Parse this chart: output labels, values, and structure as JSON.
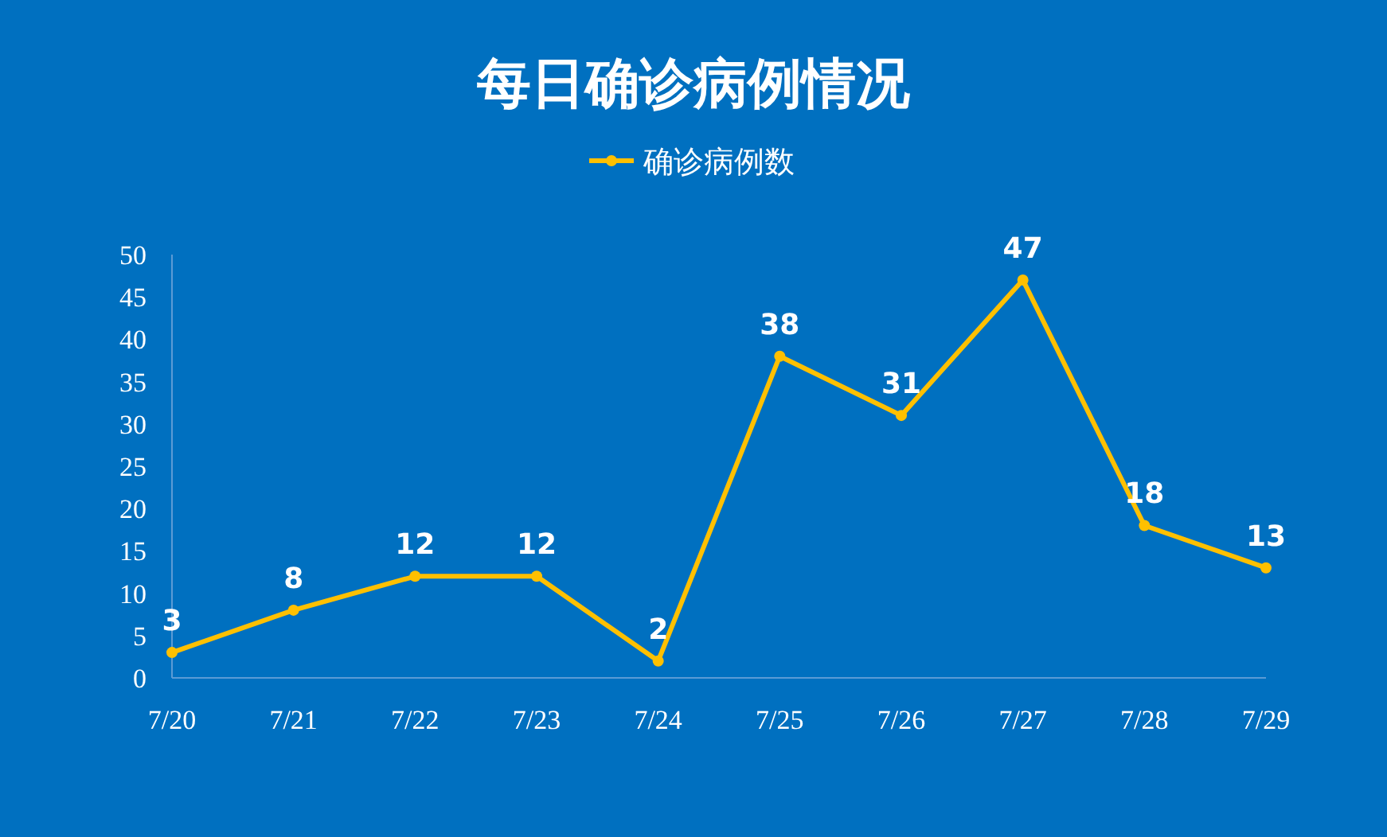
{
  "chart_data": {
    "type": "line",
    "title": "每日确诊病例情况",
    "categories": [
      "7/20",
      "7/21",
      "7/22",
      "7/23",
      "7/24",
      "7/25",
      "7/26",
      "7/27",
      "7/28",
      "7/29"
    ],
    "series": [
      {
        "name": "确诊病例数",
        "color": "#ffc000",
        "values": [
          3,
          8,
          12,
          12,
          2,
          38,
          31,
          47,
          18,
          13
        ]
      }
    ],
    "ylim": [
      0,
      50
    ],
    "yticks": [
      0,
      5,
      10,
      15,
      20,
      25,
      30,
      35,
      40,
      45,
      50
    ],
    "data_labels": true,
    "legend": "top",
    "marker": "circle",
    "line_style": "solid",
    "grid": false
  }
}
